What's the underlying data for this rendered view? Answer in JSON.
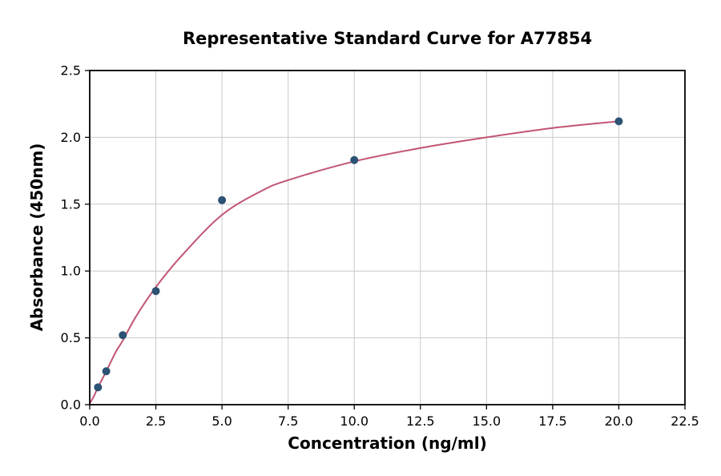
{
  "chart_data": {
    "type": "scatter",
    "title": "Representative Standard Curve for A77854",
    "xlabel": "Concentration (ng/ml)",
    "ylabel": "Absorbance (450nm)",
    "xlim": [
      0,
      22.5
    ],
    "ylim": [
      0,
      2.5
    ],
    "grid": true,
    "legend": "none",
    "xticks": [
      0.0,
      2.5,
      5.0,
      7.5,
      10.0,
      12.5,
      15.0,
      17.5,
      20.0,
      22.5
    ],
    "xtick_labels": [
      "0.0",
      "2.5",
      "5.0",
      "7.5",
      "10.0",
      "12.5",
      "15.0",
      "17.5",
      "20.0",
      "22.5"
    ],
    "yticks": [
      0.0,
      0.5,
      1.0,
      1.5,
      2.0,
      2.5
    ],
    "ytick_labels": [
      "0.0",
      "0.5",
      "1.0",
      "1.5",
      "2.0",
      "2.5"
    ],
    "points": {
      "x": [
        0.313,
        0.625,
        1.25,
        2.5,
        5.0,
        10.0,
        20.0
      ],
      "y": [
        0.13,
        0.25,
        0.52,
        0.85,
        1.53,
        1.83,
        2.12
      ]
    },
    "fit_curve": {
      "x": [
        0,
        0.15,
        0.313,
        0.625,
        1.0,
        1.25,
        1.75,
        2.5,
        3.5,
        5.0,
        6.5,
        7.5,
        10.0,
        12.5,
        15.0,
        17.5,
        20.0
      ],
      "y": [
        0.01,
        0.06,
        0.13,
        0.25,
        0.4,
        0.48,
        0.66,
        0.88,
        1.12,
        1.42,
        1.6,
        1.68,
        1.82,
        1.92,
        2.0,
        2.07,
        2.12
      ]
    },
    "colors": {
      "point": "#2c5274",
      "curve": "#c25573",
      "grid": "#c9c9c9",
      "axis": "#000000",
      "text": "#000000"
    }
  }
}
